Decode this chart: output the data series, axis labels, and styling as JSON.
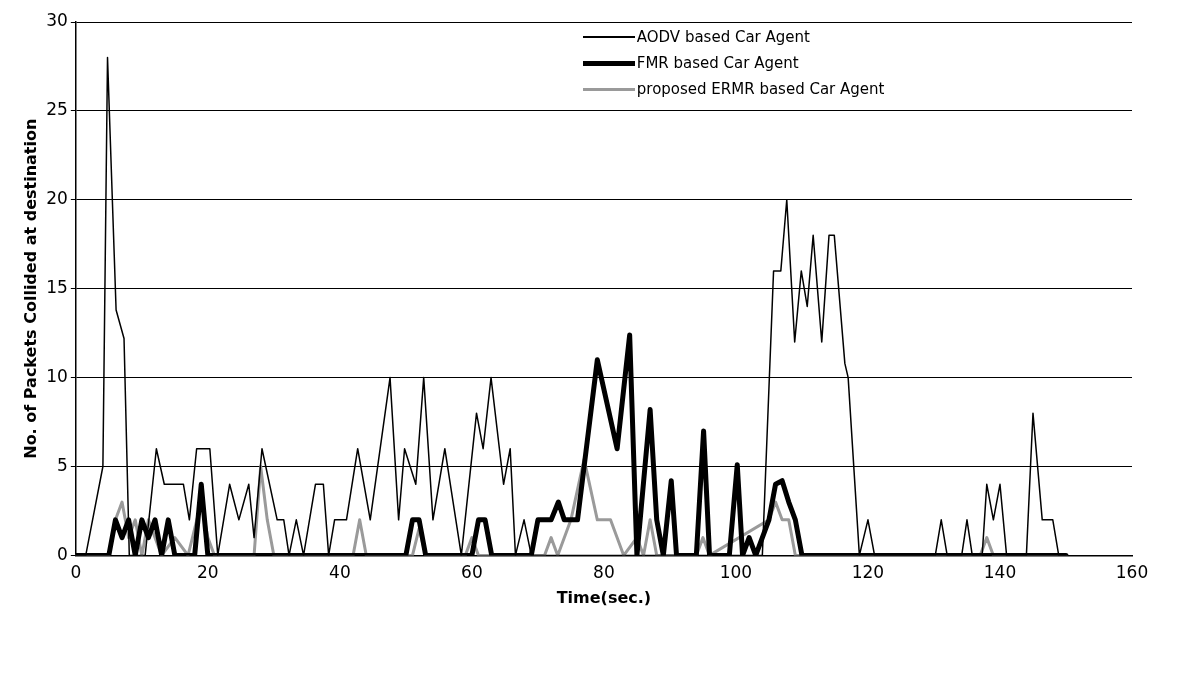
{
  "chart_data": {
    "type": "line",
    "xlabel": "Time(sec.)",
    "ylabel": "No. of Packets Collided at destination",
    "xlim": [
      0,
      160
    ],
    "xticks": [
      0,
      20,
      40,
      60,
      80,
      100,
      120,
      140,
      160
    ],
    "ylim": [
      0,
      30
    ],
    "yticks": [
      0,
      5,
      10,
      15,
      20,
      25,
      30
    ],
    "grid": "y",
    "legend": "top right",
    "marker": "none",
    "line_style": "solid",
    "series": [
      {
        "name": "AODV based Car Agent",
        "color": "#000000",
        "x": [
          0,
          1.5,
          4.1,
          4.8,
          6.1,
          7.3,
          8.1,
          10.5,
          12.2,
          13.4,
          16.3,
          17.2,
          18.3,
          20.3,
          21.5,
          23.3,
          24.7,
          26.2,
          27,
          28.2,
          30.5,
          31.5,
          32.3,
          33.4,
          34.5,
          36.3,
          37.5,
          38.3,
          39.2,
          41,
          42.7,
          44.6,
          47.6,
          48.9,
          49.8,
          51.5,
          52.7,
          54.1,
          55.9,
          58.4,
          60.7,
          61.7,
          62.9,
          64.8,
          65.8,
          66.6,
          67.9,
          69,
          104,
          105.7,
          106.8,
          107.7,
          108.9,
          109.9,
          110.8,
          111.7,
          113,
          114.1,
          114.9,
          116.5,
          117,
          118.7,
          120,
          121,
          130.2,
          131.1,
          132,
          134.2,
          135,
          135.8,
          137.3,
          138,
          139,
          140,
          141,
          144,
          145,
          146.4,
          148,
          148.9,
          150
        ],
        "values": [
          0,
          0,
          5,
          28,
          13.8,
          12.2,
          0,
          0,
          6,
          4,
          4,
          2,
          6,
          6,
          0,
          4,
          2,
          4,
          1,
          6,
          2,
          2,
          0,
          2,
          0,
          4,
          4,
          0,
          2,
          2,
          6,
          2,
          10,
          2,
          6,
          4,
          10,
          2,
          6,
          0,
          8,
          6,
          10,
          4,
          6,
          0,
          2,
          0,
          0,
          16,
          16,
          20,
          12,
          16,
          14,
          18,
          12,
          18,
          18,
          10.8,
          10,
          0,
          2,
          0,
          0,
          2,
          0,
          0,
          2,
          0,
          0,
          4,
          2,
          4,
          0,
          0,
          8,
          2,
          2,
          0,
          0
        ]
      },
      {
        "name": "FMR based Car Agent",
        "color": "#000000",
        "x": [
          0,
          5,
          6,
          7,
          8,
          9,
          10,
          11,
          12,
          13,
          14,
          15,
          18,
          19,
          20,
          50,
          51,
          52,
          53,
          60,
          61,
          62,
          63,
          69,
          70,
          72,
          73.1,
          74,
          76,
          77,
          79,
          82,
          83.9,
          85,
          87,
          88,
          89,
          90.2,
          91,
          94,
          95.1,
          96,
          99,
          100.2,
          101,
          102,
          103,
          105,
          106,
          107,
          108,
          109,
          110,
          150
        ],
        "values": [
          0,
          0,
          2,
          1,
          2,
          0,
          2,
          1,
          2,
          0,
          2,
          0,
          0,
          4,
          0,
          0,
          2,
          2,
          0,
          0,
          2,
          2,
          0,
          0,
          2,
          2,
          3,
          2,
          2,
          5,
          11,
          6,
          12.4,
          0,
          8.2,
          2,
          0,
          4.2,
          0,
          0,
          7,
          0,
          0,
          5.1,
          0,
          1,
          0,
          2,
          4,
          4.2,
          3,
          2,
          0,
          0
        ]
      },
      {
        "name": "proposed ERMR based Car Agent",
        "color": "#9a9a9a",
        "x": [
          0,
          5,
          6,
          7,
          8,
          9,
          10,
          11,
          12,
          13,
          15,
          17,
          19,
          20,
          21,
          27,
          28,
          29,
          30,
          42,
          43,
          44,
          51,
          52,
          53,
          59,
          60,
          61,
          71,
          72,
          73,
          75,
          77,
          79,
          81,
          83,
          85,
          86,
          87,
          88,
          94,
          95,
          96,
          105,
          106,
          107,
          108,
          109,
          137,
          138,
          139,
          150
        ],
        "values": [
          0,
          0,
          2,
          3,
          1,
          2,
          0,
          2,
          1,
          0,
          1,
          0,
          3,
          1,
          0,
          0,
          5,
          2,
          0,
          0,
          2,
          0,
          0,
          1.5,
          0,
          0,
          1,
          0,
          0,
          1,
          0,
          2,
          5.4,
          2,
          2,
          0,
          1,
          0,
          2,
          0,
          0,
          1,
          0,
          2,
          3,
          2,
          2,
          0,
          0,
          1,
          0,
          0
        ]
      }
    ]
  }
}
